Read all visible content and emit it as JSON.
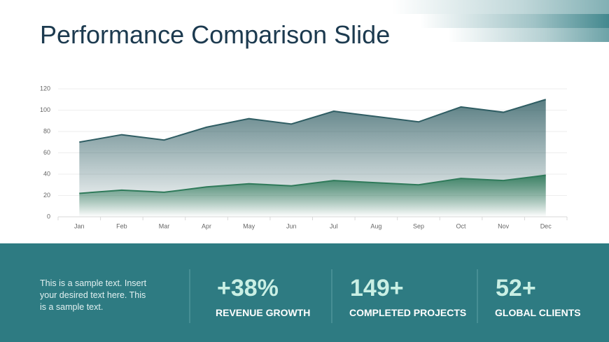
{
  "title": "Performance Comparison Slide",
  "chart_data": {
    "type": "area",
    "categories": [
      "Jan",
      "Feb",
      "Mar",
      "Apr",
      "May",
      "Jun",
      "Jul",
      "Aug",
      "Sep",
      "Oct",
      "Nov",
      "Dec"
    ],
    "series": [
      {
        "color": "#2f5d63",
        "values": [
          70,
          77,
          72,
          84,
          92,
          87,
          99,
          94,
          89,
          103,
          98,
          110
        ]
      },
      {
        "color": "#2f7a5a",
        "values": [
          22,
          25,
          23,
          28,
          31,
          29,
          34,
          32,
          30,
          36,
          34,
          39
        ]
      }
    ],
    "ylim": [
      0,
      120
    ],
    "yticks": [
      0,
      20,
      40,
      60,
      80,
      100,
      120
    ],
    "grid": true
  },
  "description": [
    "This is a sample text. Insert",
    "your desired text here. This",
    "is a sample text."
  ],
  "stats": [
    {
      "value": "+38%",
      "label": "REVENUE GROWTH"
    },
    {
      "value": "149+",
      "label": "COMPLETED PROJECTS"
    },
    {
      "value": "52+",
      "label": "GLOBAL CLIENTS"
    }
  ]
}
